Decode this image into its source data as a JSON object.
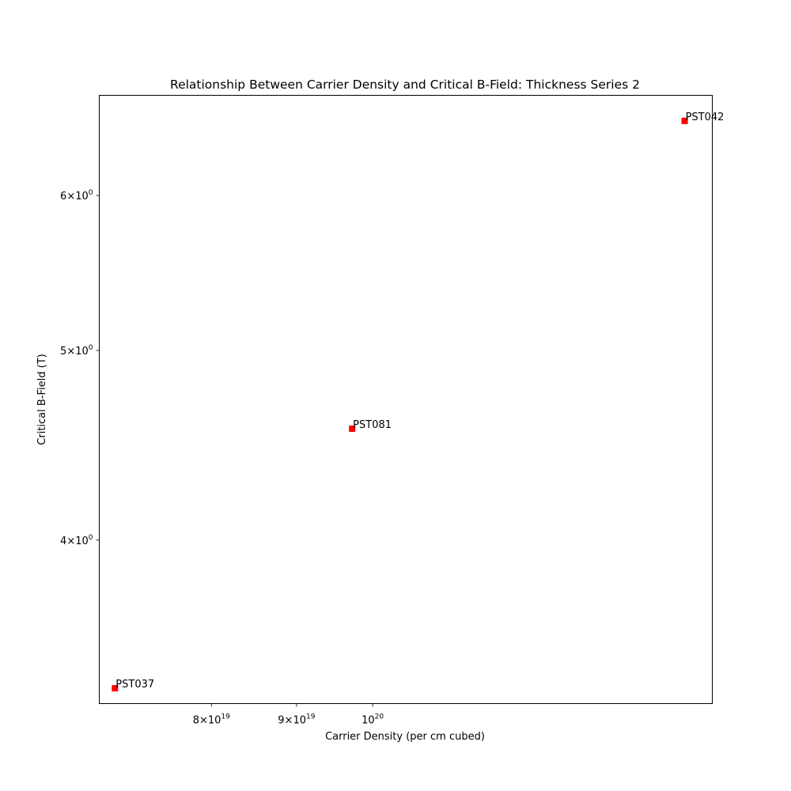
{
  "chart_data": {
    "type": "scatter",
    "title": "Relationship Between Carrier Density and Critical B-Field: Thickness Series 2",
    "xlabel": "Carrier Density (per cm cubed)",
    "ylabel": "Critical B-Field (T)",
    "xscale": "log",
    "yscale": "log",
    "xlim": [
      6.85e+19,
      1.6e+20
    ],
    "ylim": [
      3.3,
      6.75
    ],
    "grid": false,
    "marker": "square",
    "marker_color": "#ff0000",
    "x_ticks": [
      {
        "value": 8e+19,
        "mantissa": "8",
        "base": "10",
        "exp": "19"
      },
      {
        "value": 9e+19,
        "mantissa": "9",
        "base": "10",
        "exp": "19"
      },
      {
        "value": 1e+20,
        "mantissa": "",
        "base": "10",
        "exp": "20"
      }
    ],
    "y_ticks": [
      {
        "value": 4,
        "mantissa": "4",
        "base": "10",
        "exp": "0"
      },
      {
        "value": 5,
        "mantissa": "5",
        "base": "10",
        "exp": "0"
      },
      {
        "value": 6,
        "mantissa": "6",
        "base": "10",
        "exp": "0"
      }
    ],
    "points": [
      {
        "label": "PST037",
        "x": 7e+19,
        "y": 3.36
      },
      {
        "label": "PST081",
        "x": 9.72e+19,
        "y": 4.56
      },
      {
        "label": "PST042",
        "x": 1.54e+20,
        "y": 6.55
      }
    ]
  }
}
